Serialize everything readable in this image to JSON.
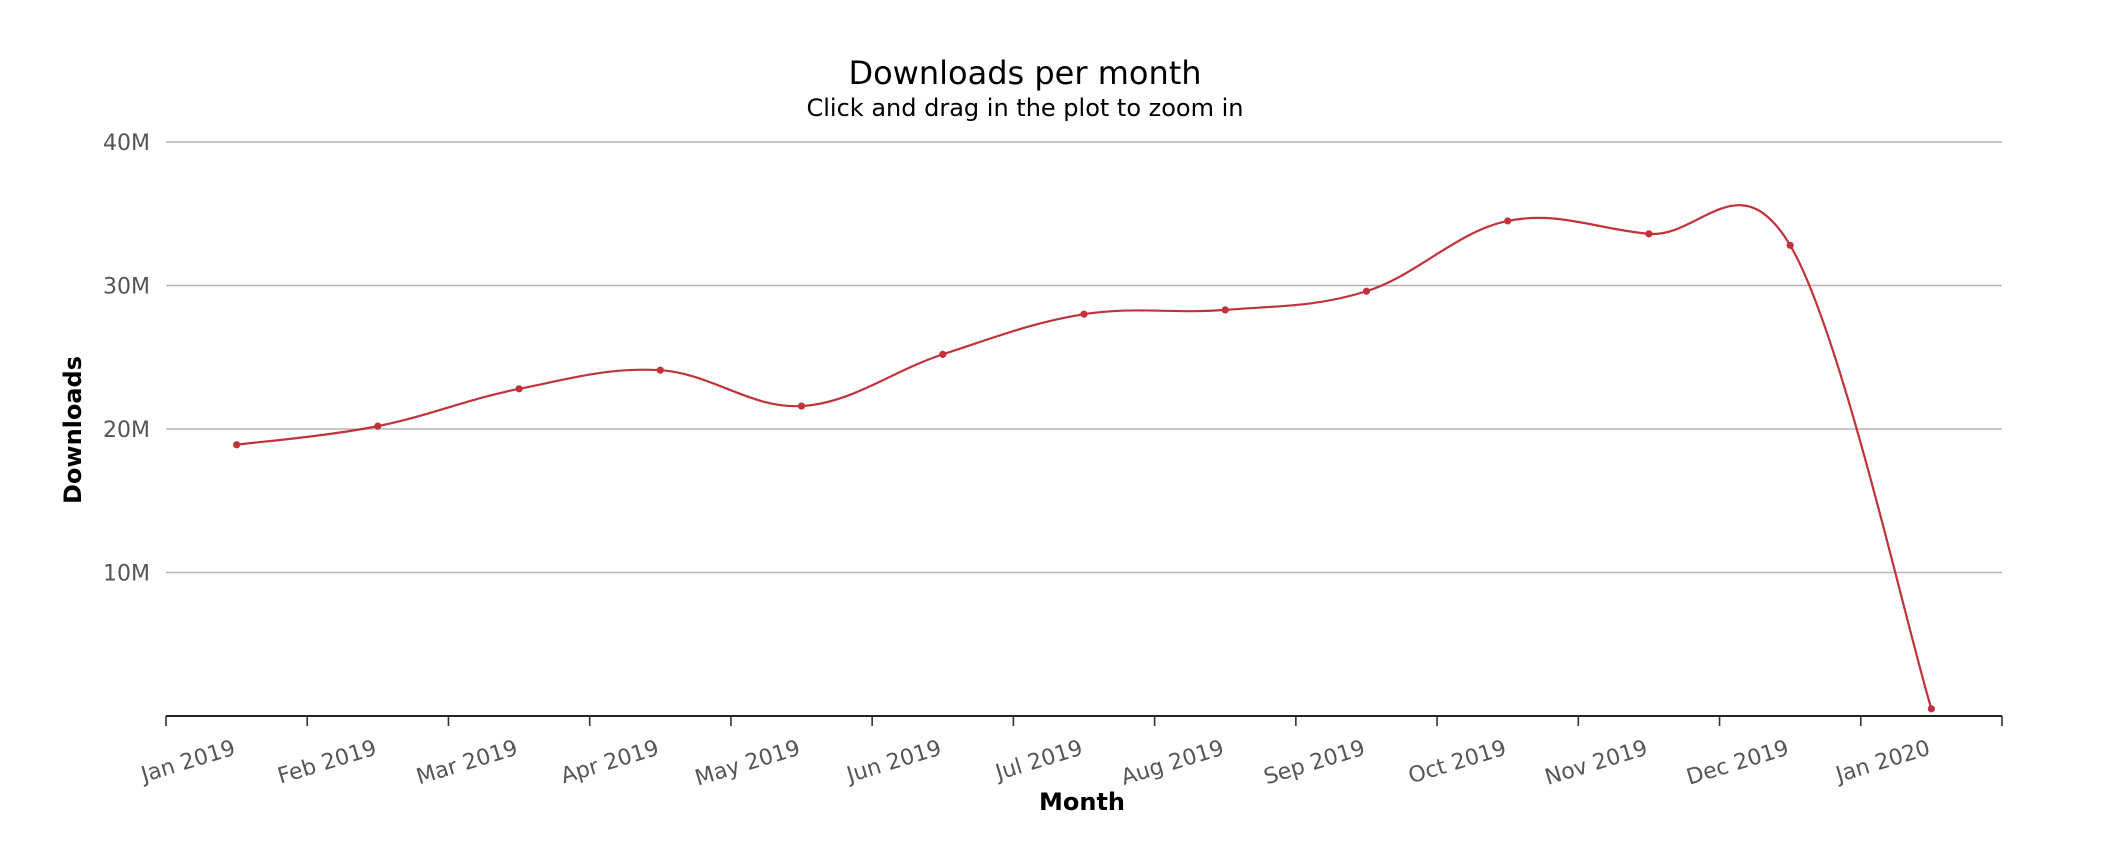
{
  "chart_data": {
    "type": "line",
    "title": "Downloads per month",
    "subtitle": "Click and drag in the plot to zoom in",
    "xlabel": "Month",
    "ylabel": "Downloads",
    "categories": [
      "Jan 2019",
      "Feb 2019",
      "Mar 2019",
      "Apr 2019",
      "May 2019",
      "Jun 2019",
      "Jul 2019",
      "Aug 2019",
      "Sep 2019",
      "Oct 2019",
      "Nov 2019",
      "Dec 2019",
      "Jan 2020"
    ],
    "series": [
      {
        "values": [
          18900000,
          20200000,
          22800000,
          24100000,
          21600000,
          25200000,
          28000000,
          28300000,
          29600000,
          34500000,
          33600000,
          32800000,
          500000
        ]
      }
    ],
    "ylim": [
      0,
      40000000
    ],
    "yticks": [
      10000000,
      20000000,
      30000000,
      40000000
    ],
    "ytick_labels": [
      "10M",
      "20M",
      "30M",
      "40M"
    ],
    "grid": true,
    "legend": "none",
    "colors": {
      "line": "#c0323c",
      "grid": "#b5b5b5",
      "axis": "#222222"
    }
  }
}
